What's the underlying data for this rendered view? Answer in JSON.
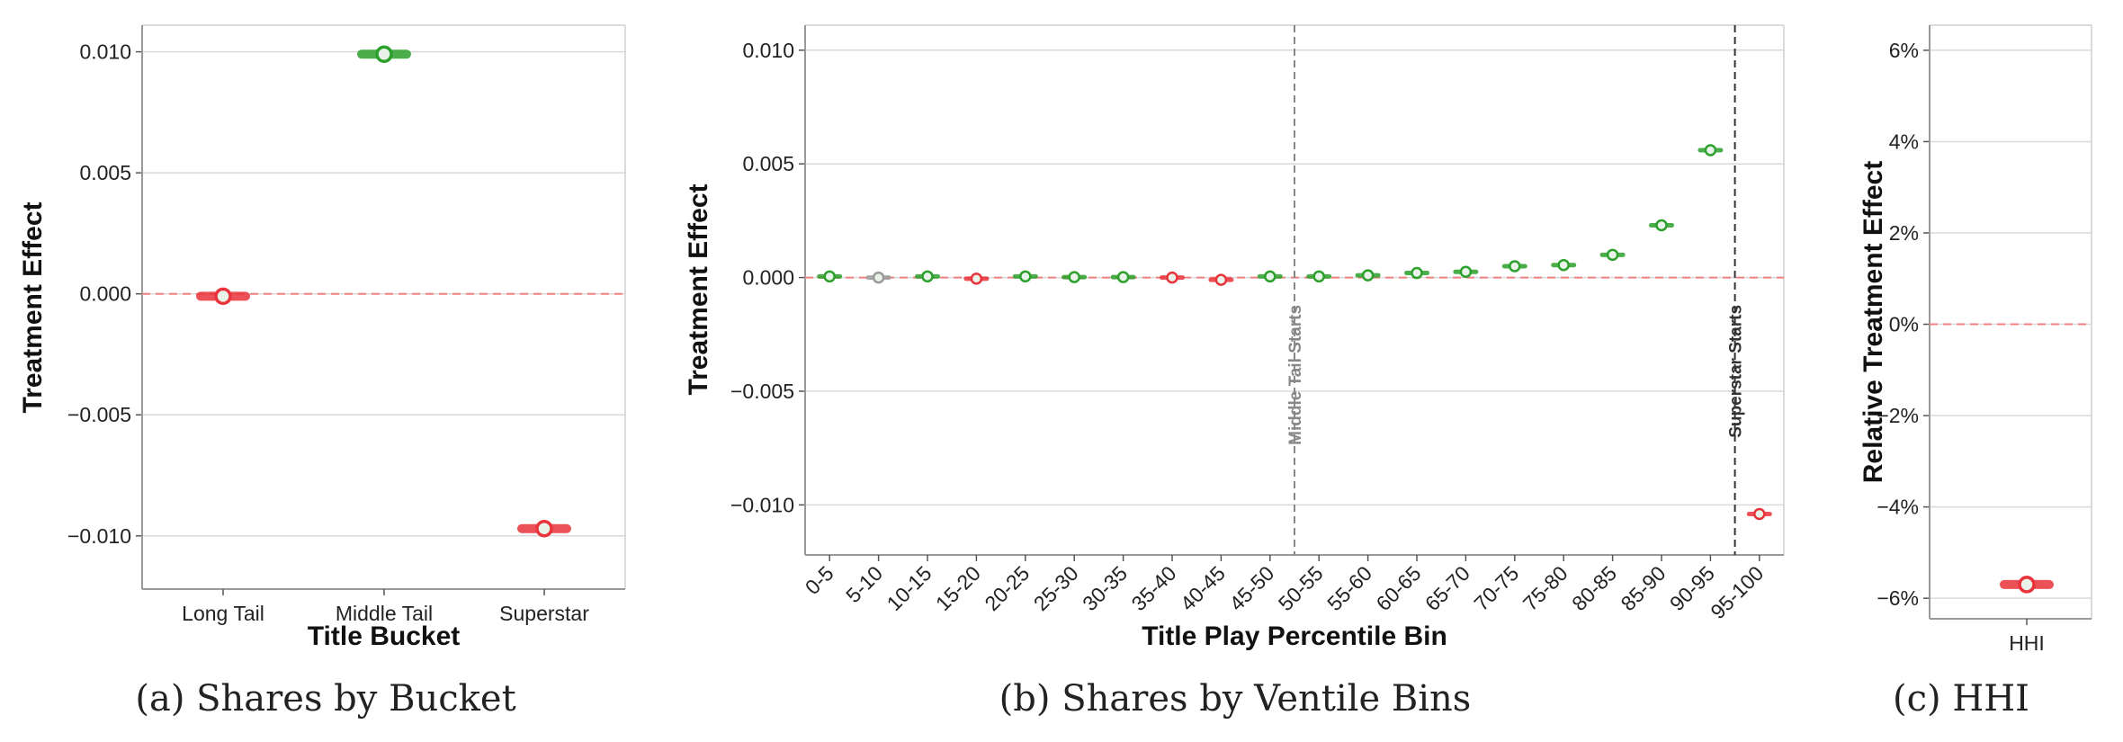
{
  "colors": {
    "positive": "#2ca02c",
    "negative": "#e8333a",
    "neutral": "#999999",
    "zero_line": "#f08080",
    "grid": "#d9d9d9",
    "frame": "#999999"
  },
  "chart_data": [
    {
      "id": "a",
      "type": "scatter",
      "caption": "(a) Shares by Bucket",
      "xlabel": "Title Bucket",
      "ylabel": "Treatment Effect",
      "categories": [
        "Long Tail",
        "Middle Tail",
        "Superstar"
      ],
      "values": [
        -0.0001,
        0.0099,
        -0.0097
      ],
      "signs": [
        "negative",
        "positive",
        "negative"
      ],
      "ci_halfwidth": [
        0.0005,
        0.0005,
        0.0005
      ],
      "ylim": [
        -0.0122,
        0.0111
      ],
      "yticks": [
        0.01,
        0.005,
        0.0,
        -0.005,
        -0.01
      ],
      "ytick_labels": [
        "0.010",
        "0.005",
        "0.000",
        "−0.005",
        "−0.010"
      ],
      "zero_line": true,
      "grid": true
    },
    {
      "id": "b",
      "type": "scatter",
      "caption": "(b) Shares by Ventile Bins",
      "xlabel": "Title Play Percentile Bin",
      "ylabel": "Treatment Effect",
      "categories": [
        "0-5",
        "5-10",
        "10-15",
        "15-20",
        "20-25",
        "25-30",
        "30-35",
        "35-40",
        "40-45",
        "45-50",
        "50-55",
        "55-60",
        "60-65",
        "65-70",
        "70-75",
        "75-80",
        "80-85",
        "85-90",
        "90-95",
        "95-100"
      ],
      "values": [
        5e-05,
        0.0,
        5e-05,
        -5e-05,
        5e-05,
        2e-05,
        2e-05,
        0.0,
        -0.0001,
        5e-05,
        5e-05,
        0.0001,
        0.0002,
        0.00025,
        0.0005,
        0.00055,
        0.001,
        0.0023,
        0.0056,
        -0.0104
      ],
      "signs": [
        "positive",
        "neutral",
        "positive",
        "negative",
        "positive",
        "positive",
        "positive",
        "negative",
        "negative",
        "positive",
        "positive",
        "positive",
        "positive",
        "positive",
        "positive",
        "positive",
        "positive",
        "positive",
        "positive",
        "negative"
      ],
      "ci_halfwidth": [
        0.00015,
        0.00015,
        0.00015,
        0.00015,
        0.00015,
        0.00015,
        0.00015,
        0.00015,
        0.00015,
        0.00015,
        0.00015,
        0.00015,
        0.00015,
        0.00015,
        0.00015,
        0.00015,
        0.00015,
        0.00015,
        0.00015,
        0.0002
      ],
      "ylim": [
        -0.0122,
        0.0111
      ],
      "yticks": [
        0.01,
        0.005,
        0.0,
        -0.005,
        -0.01
      ],
      "ytick_labels": [
        "0.010",
        "0.005",
        "0.000",
        "−0.005",
        "−0.010"
      ],
      "vlines": [
        {
          "label": "Middle Tail Starts",
          "between": [
            9,
            10
          ],
          "color": "#888888"
        },
        {
          "label": "Superstar Starts",
          "between": [
            18,
            19
          ],
          "color": "#333333"
        }
      ],
      "zero_line": true,
      "grid": true
    },
    {
      "id": "c",
      "type": "scatter",
      "caption": "(c) HHI",
      "xlabel": "",
      "ylabel": "Relative Treatment Effect",
      "categories": [
        "HHI"
      ],
      "values": [
        -5.7
      ],
      "signs": [
        "negative"
      ],
      "ci_halfwidth": [
        0.2
      ],
      "ylim": [
        -6.45,
        6.55
      ],
      "yticks": [
        6,
        4,
        2,
        0,
        -2,
        -4,
        -6
      ],
      "ytick_labels": [
        "6%",
        "4%",
        "2%",
        "0%",
        "−2%",
        "−4%",
        "−6%"
      ],
      "zero_line": true,
      "grid": true
    }
  ]
}
